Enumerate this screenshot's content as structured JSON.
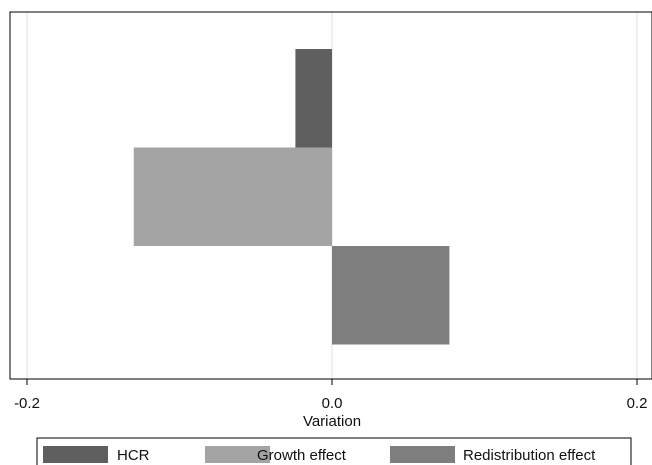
{
  "chart_data": {
    "type": "bar",
    "orientation": "horizontal",
    "title": "",
    "xlabel": "Variation",
    "ylabel": "",
    "xlim": [
      -0.2,
      0.2
    ],
    "x_ticks": [
      -0.2,
      0.0,
      0.2
    ],
    "x_tick_labels": [
      "-0.2",
      "0.0",
      "0.2"
    ],
    "grid": true,
    "legend_position": "bottom",
    "series": [
      {
        "name": "HCR",
        "value": -0.024,
        "color": "#5f5f5f"
      },
      {
        "name": "Growth effect",
        "value": -0.13,
        "color": "#a4a4a4"
      },
      {
        "name": "Redistribution effect",
        "value": 0.077,
        "color": "#7e7e7e"
      }
    ]
  }
}
